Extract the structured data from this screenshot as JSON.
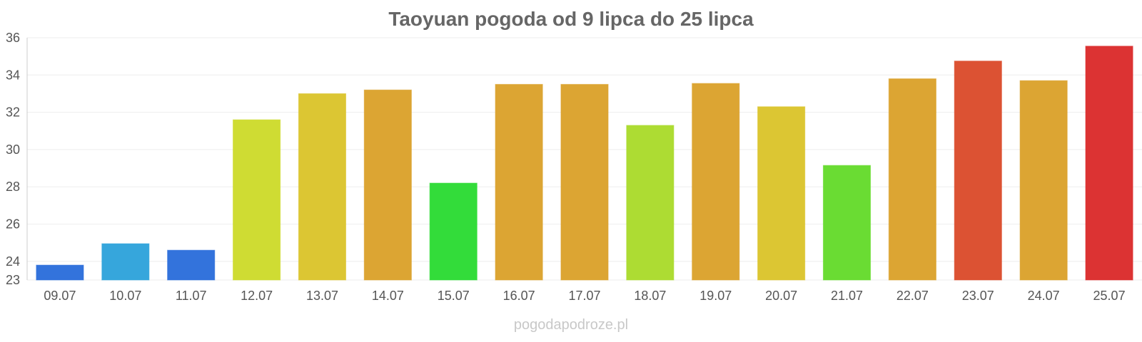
{
  "chart_data": {
    "type": "bar",
    "title": "Taoyuan pogoda od 9 lipca do 25 lipca",
    "xlabel": "",
    "ylabel": "",
    "categories": [
      "09.07",
      "10.07",
      "11.07",
      "12.07",
      "13.07",
      "14.07",
      "15.07",
      "16.07",
      "17.07",
      "18.07",
      "19.07",
      "20.07",
      "21.07",
      "22.07",
      "23.07",
      "24.07",
      "25.07"
    ],
    "values": [
      23.8,
      24.95,
      24.6,
      31.6,
      33.0,
      33.2,
      28.2,
      33.5,
      33.5,
      31.3,
      33.55,
      32.3,
      29.15,
      33.8,
      34.75,
      33.7,
      35.55
    ],
    "colors": [
      "#3373dc",
      "#36a6dc",
      "#3373dc",
      "#cfdc33",
      "#dcc633",
      "#dca533",
      "#33dc3a",
      "#dca533",
      "#dca533",
      "#addc33",
      "#dca533",
      "#dcc633",
      "#6adc33",
      "#dca533",
      "#dc5233",
      "#dca533",
      "#dc3333"
    ],
    "ylim": [
      23,
      36
    ],
    "yticks": [
      23,
      24,
      26,
      28,
      30,
      32,
      34,
      36
    ],
    "grid": true,
    "legend": "none"
  },
  "footer": {
    "watermark": "pogodapodroze.pl"
  }
}
